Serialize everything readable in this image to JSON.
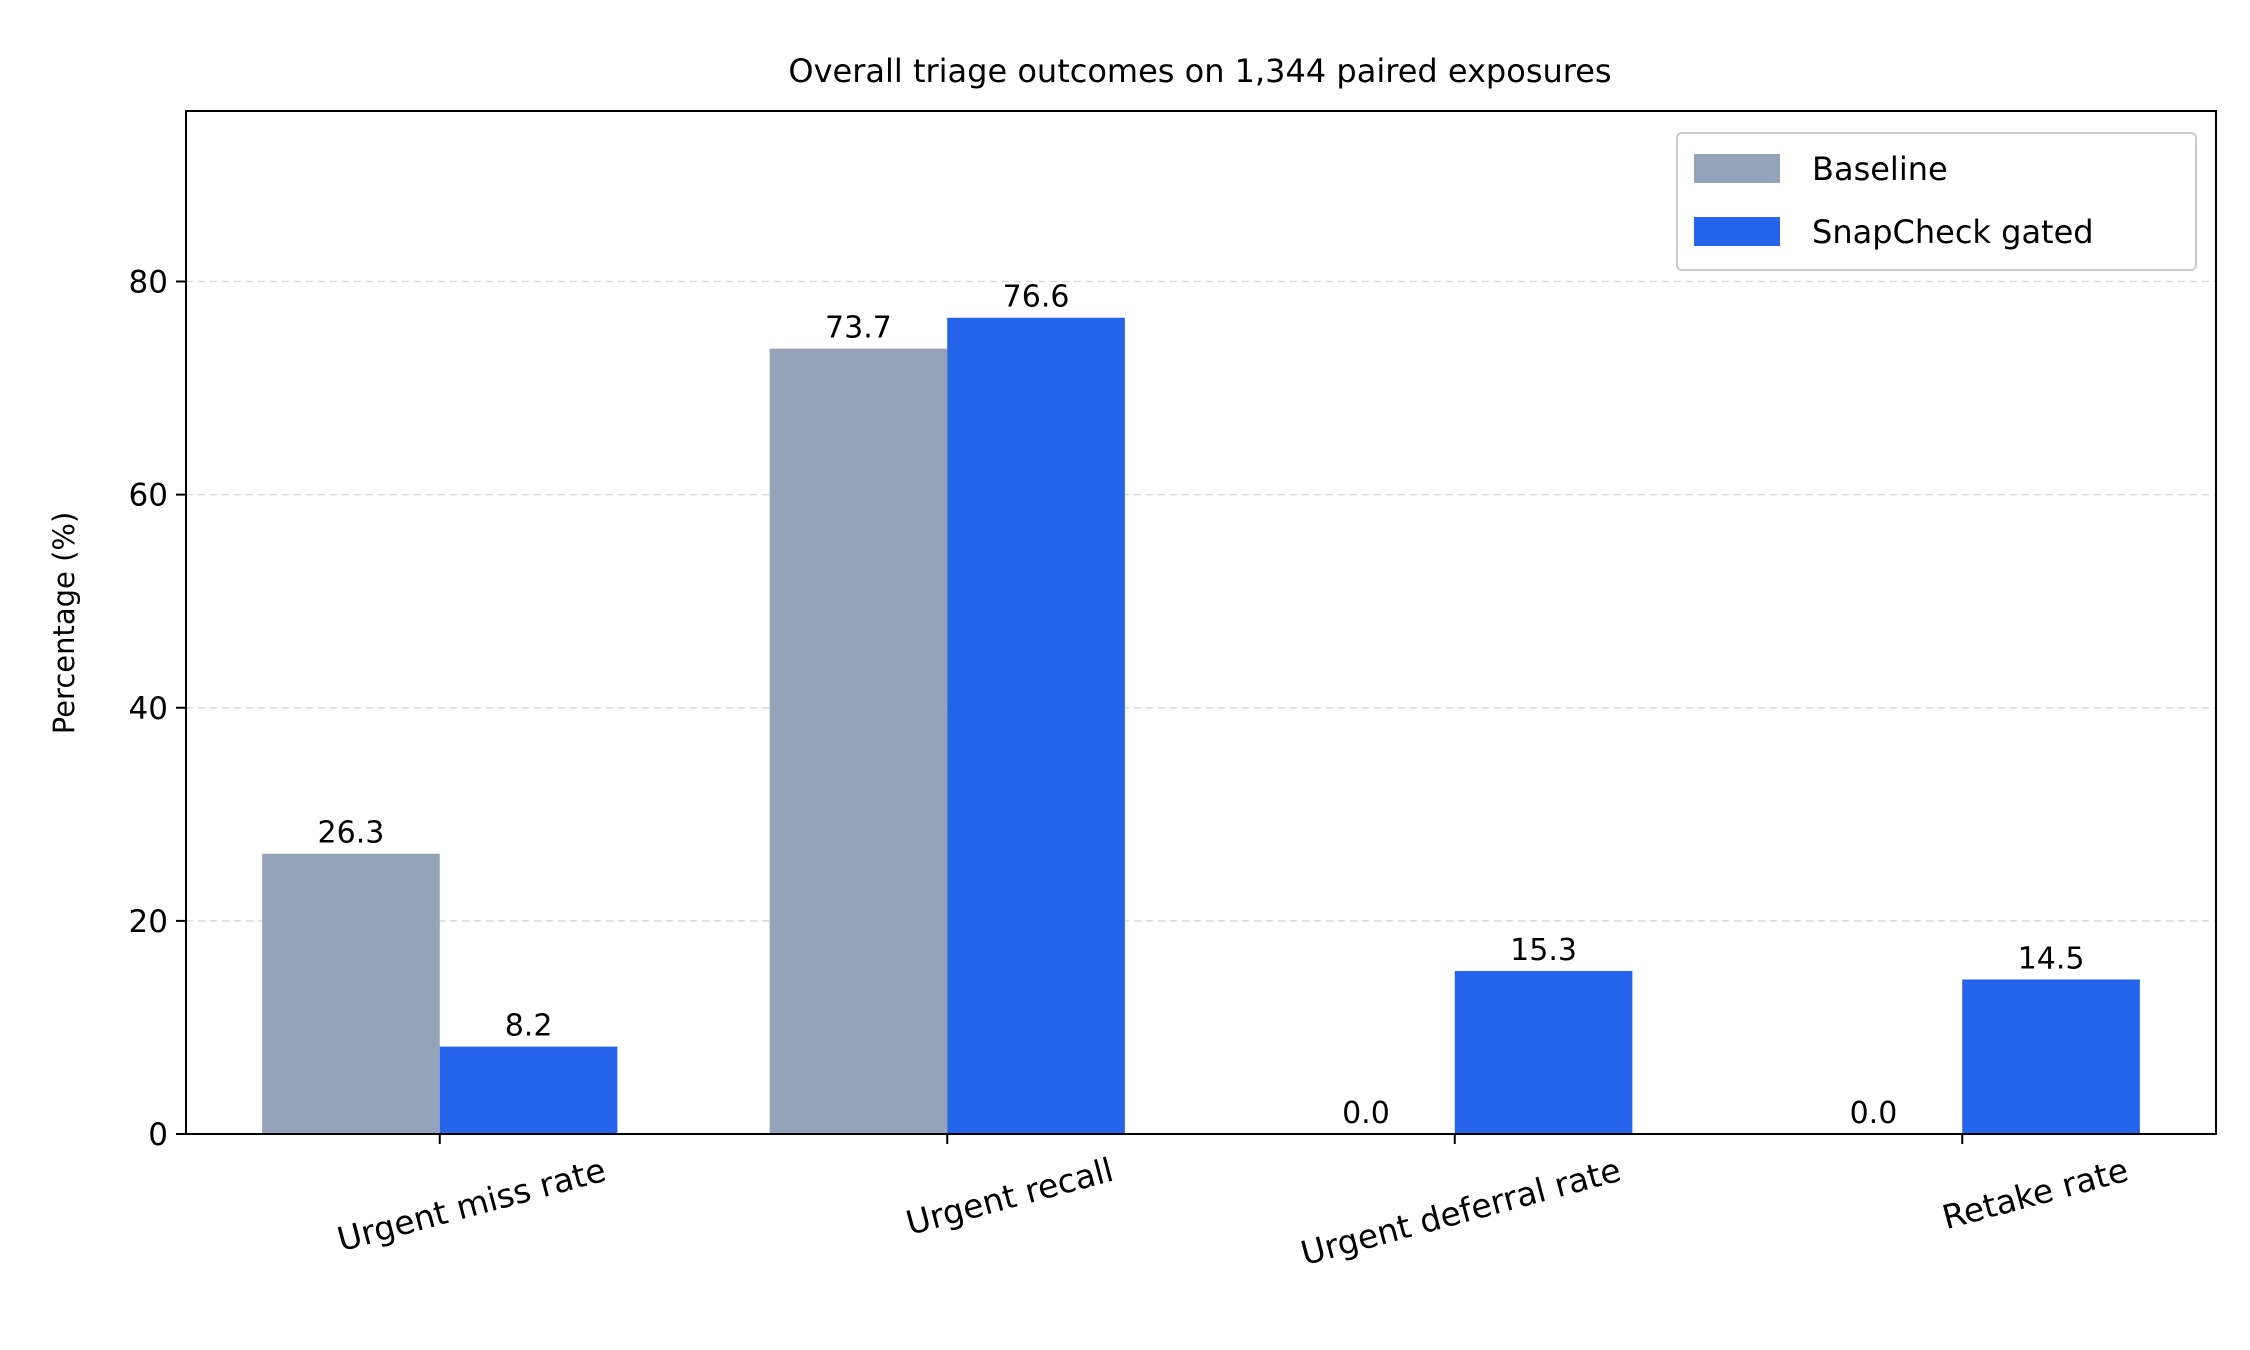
{
  "chart_data": {
    "type": "bar",
    "title": "Overall triage outcomes on 1,344 paired exposures",
    "xlabel": "",
    "ylabel": "Percentage (%)",
    "categories": [
      "Urgent miss rate",
      "Urgent recall",
      "Urgent deferral rate",
      "Retake rate"
    ],
    "series": [
      {
        "name": "Baseline",
        "values": [
          26.3,
          73.7,
          0.0,
          0.0
        ],
        "labels": [
          "26.3",
          "73.7",
          "0.0",
          "0.0"
        ],
        "color": "#94a3b8"
      },
      {
        "name": "SnapCheck gated",
        "values": [
          8.2,
          76.6,
          15.3,
          14.5
        ],
        "labels": [
          "8.2",
          "76.6",
          "15.3",
          "14.5"
        ],
        "color": "#2563eb"
      }
    ],
    "ylim": [
      0,
      96
    ],
    "yticks": [
      0,
      20,
      40,
      60,
      80
    ],
    "ytick_labels": [
      "0",
      "20",
      "40",
      "60",
      "80"
    ],
    "grid": "y-dashed",
    "legend": "top-right"
  }
}
